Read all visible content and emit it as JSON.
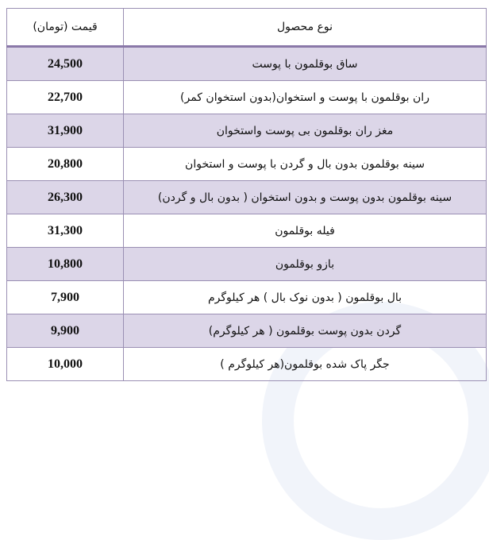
{
  "header": {
    "product": "نوع محصول",
    "price": "قیمت (تومان)"
  },
  "rows": [
    {
      "product": "ساق بوقلمون با پوست",
      "price": "24,500"
    },
    {
      "product": "ران بوقلمون با پوست و استخوان(بدون استخوان کمر)",
      "price": "22,700"
    },
    {
      "product": "مغز ران بوقلمون بی پوست واستخوان",
      "price": "31,900"
    },
    {
      "product": "سینه بوقلمون بدون بال و گردن با پوست و استخوان",
      "price": "20,800"
    },
    {
      "product": "سینه بوقلمون بدون پوست و بدون استخوان ( بدون بال و گردن)",
      "price": "26,300"
    },
    {
      "product": "فیله بوقلمون",
      "price": "31,300"
    },
    {
      "product": "بازو بوقلمون",
      "price": "10,800"
    },
    {
      "product": "بال بوقلمون ( بدون نوک بال ) هر کیلوگرم",
      "price": "7,900"
    },
    {
      "product": "گردن بدون پوست بوقلمون ( هر کیلوگرم)",
      "price": "9,900"
    },
    {
      "product": "جگر پاک شده بوقلمون(هر کیلوگرم )",
      "price": "10,000"
    }
  ],
  "colors": {
    "row_alt": "#dcd6e8",
    "border": "#9a8fb3"
  }
}
